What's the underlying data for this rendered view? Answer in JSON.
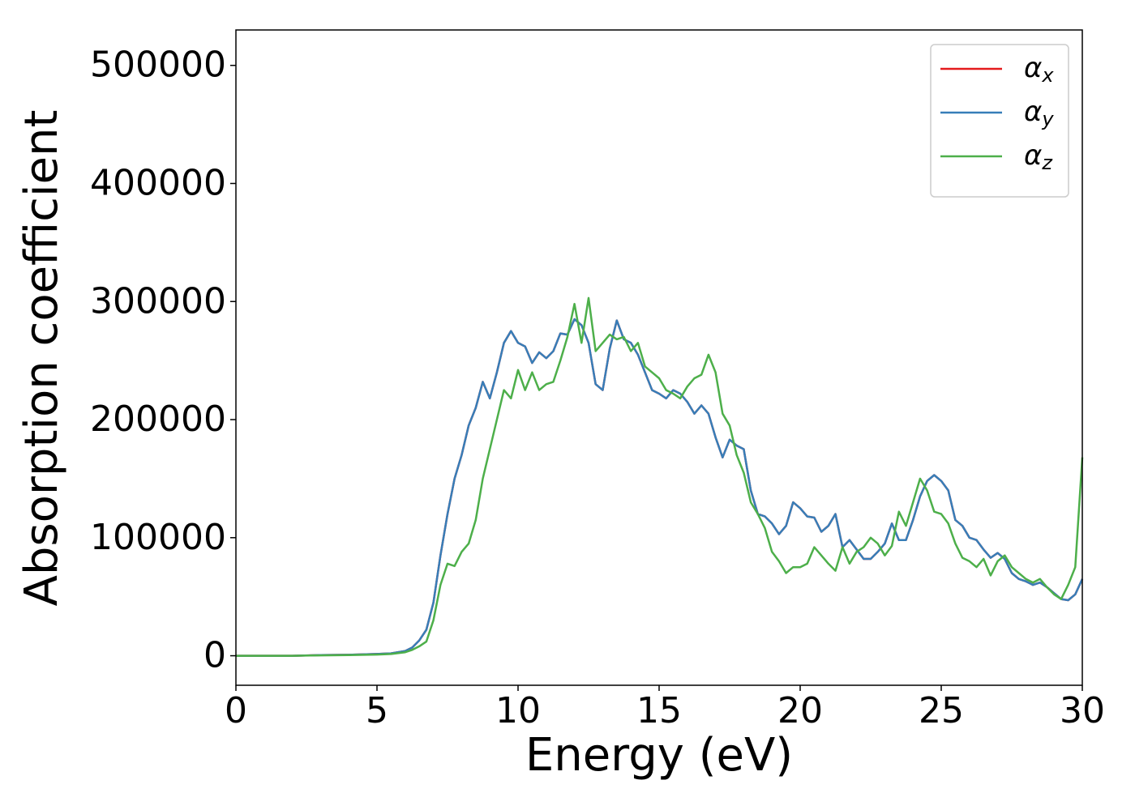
{
  "chart_data": {
    "type": "line",
    "xlabel": "Energy (eV)",
    "ylabel": "Absorption coefficient",
    "xlim": [
      0,
      30
    ],
    "ylim": [
      -25000,
      530000
    ],
    "xticks": [
      0,
      5,
      10,
      15,
      20,
      25,
      30
    ],
    "yticks": [
      0,
      100000,
      200000,
      300000,
      400000,
      500000
    ],
    "legend": "upper right",
    "x": [
      0,
      1,
      2,
      3,
      4,
      5,
      5.5,
      6,
      6.25,
      6.5,
      6.75,
      7,
      7.25,
      7.5,
      7.75,
      8,
      8.25,
      8.5,
      8.75,
      9,
      9.25,
      9.5,
      9.75,
      10,
      10.25,
      10.5,
      10.75,
      11,
      11.25,
      11.5,
      11.75,
      12,
      12.25,
      12.5,
      12.75,
      13,
      13.25,
      13.5,
      13.75,
      14,
      14.25,
      14.5,
      14.75,
      15,
      15.25,
      15.5,
      15.75,
      16,
      16.25,
      16.5,
      16.75,
      17,
      17.25,
      17.5,
      17.75,
      18,
      18.25,
      18.5,
      18.75,
      19,
      19.25,
      19.5,
      19.75,
      20,
      20.25,
      20.5,
      20.75,
      21,
      21.25,
      21.5,
      21.75,
      22,
      22.25,
      22.5,
      22.75,
      23,
      23.25,
      23.5,
      23.75,
      24,
      24.25,
      24.5,
      24.75,
      25,
      25.25,
      25.5,
      25.75,
      26,
      26.25,
      26.5,
      26.75,
      27,
      27.25,
      27.5,
      27.75,
      28,
      28.25,
      28.5,
      28.75,
      29,
      29.25,
      29.5,
      29.75,
      30
    ],
    "series": [
      {
        "name": "αx",
        "color": "#e41a1c",
        "values": [
          0,
          0,
          0,
          500,
          800,
          1500,
          2000,
          4000,
          7000,
          13000,
          22000,
          45000,
          85000,
          120000,
          150000,
          170000,
          195000,
          210000,
          232000,
          218000,
          240000,
          265000,
          275000,
          265000,
          262000,
          248000,
          257000,
          252000,
          258000,
          273000,
          272000,
          285000,
          280000,
          265000,
          230000,
          225000,
          260000,
          284000,
          268000,
          265000,
          255000,
          240000,
          225000,
          222000,
          218000,
          225000,
          222000,
          215000,
          205000,
          212000,
          205000,
          185000,
          168000,
          183000,
          178000,
          175000,
          140000,
          120000,
          118000,
          112000,
          103000,
          110000,
          130000,
          125000,
          118000,
          117000,
          105000,
          110000,
          120000,
          92000,
          98000,
          90000,
          82000,
          82000,
          88000,
          95000,
          112000,
          98000,
          98000,
          115000,
          135000,
          148000,
          153000,
          148000,
          140000,
          115000,
          110000,
          100000,
          98000,
          90000,
          83000,
          87000,
          82000,
          70000,
          65000,
          63000,
          60000,
          62000,
          58000,
          53000,
          48000,
          47000,
          52000,
          65000
        ]
      },
      {
        "name": "αy",
        "color": "#377eb8",
        "values": [
          0,
          0,
          0,
          500,
          800,
          1500,
          2000,
          4000,
          7000,
          13000,
          22000,
          45000,
          85000,
          120000,
          150000,
          170000,
          195000,
          210000,
          232000,
          218000,
          240000,
          265000,
          275000,
          265000,
          262000,
          248000,
          257000,
          252000,
          258000,
          273000,
          272000,
          285000,
          280000,
          265000,
          230000,
          225000,
          260000,
          284000,
          268000,
          265000,
          255000,
          240000,
          225000,
          222000,
          218000,
          225000,
          222000,
          215000,
          205000,
          212000,
          205000,
          185000,
          168000,
          183000,
          178000,
          175000,
          140000,
          120000,
          118000,
          112000,
          103000,
          110000,
          130000,
          125000,
          118000,
          117000,
          105000,
          110000,
          120000,
          92000,
          98000,
          90000,
          82000,
          82000,
          88000,
          95000,
          112000,
          98000,
          98000,
          115000,
          135000,
          148000,
          153000,
          148000,
          140000,
          115000,
          110000,
          100000,
          98000,
          90000,
          83000,
          87000,
          82000,
          70000,
          65000,
          63000,
          60000,
          62000,
          58000,
          53000,
          48000,
          47000,
          52000,
          65000
        ]
      },
      {
        "name": "αz",
        "color": "#4daf4a",
        "values": [
          0,
          0,
          0,
          300,
          500,
          1000,
          1500,
          3000,
          5000,
          8000,
          12000,
          30000,
          60000,
          78000,
          76000,
          88000,
          95000,
          115000,
          150000,
          175000,
          200000,
          225000,
          218000,
          242000,
          225000,
          240000,
          225000,
          230000,
          232000,
          250000,
          270000,
          298000,
          265000,
          303000,
          258000,
          265000,
          272000,
          268000,
          270000,
          258000,
          265000,
          245000,
          240000,
          235000,
          225000,
          222000,
          218000,
          228000,
          235000,
          238000,
          255000,
          240000,
          205000,
          195000,
          170000,
          155000,
          130000,
          120000,
          108000,
          88000,
          80000,
          70000,
          75000,
          75000,
          78000,
          92000,
          85000,
          78000,
          72000,
          92000,
          78000,
          88000,
          92000,
          100000,
          95000,
          85000,
          93000,
          122000,
          110000,
          130000,
          150000,
          140000,
          122000,
          120000,
          112000,
          95000,
          83000,
          80000,
          75000,
          82000,
          68000,
          80000,
          85000,
          75000,
          70000,
          65000,
          62000,
          65000,
          58000,
          52000,
          48000,
          60000,
          75000,
          168000
        ]
      }
    ]
  }
}
